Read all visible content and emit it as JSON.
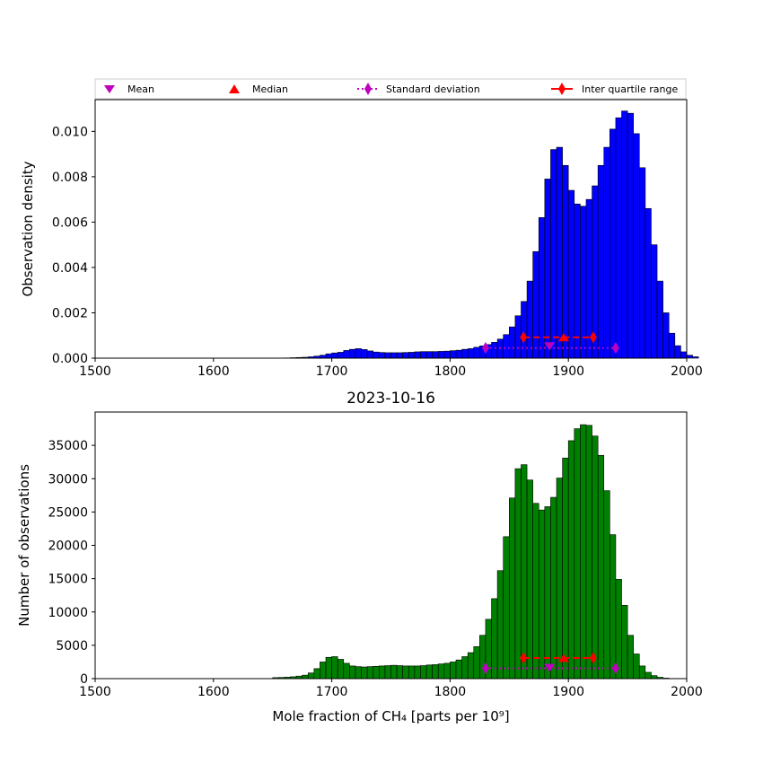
{
  "colors": {
    "density_bar": "#0000ff",
    "count_bar": "#008000",
    "edge": "#000000",
    "mean": "#bf00bf",
    "median": "#ff0000",
    "std": "#bf00bf",
    "iqr": "#ff0000"
  },
  "legend": {
    "mean": "Mean",
    "median": "Median",
    "std": "Standard deviation",
    "iqr": "Inter quartile range",
    "placement": "top, above first panel, full width"
  },
  "chart_data": [
    {
      "type": "bar",
      "title": "",
      "xlabel": "",
      "ylabel": "Observation density",
      "xlim": [
        1500,
        2000
      ],
      "ylim": [
        0,
        0.0114
      ],
      "xticks": [
        1500,
        1600,
        1700,
        1800,
        1900,
        2000
      ],
      "xtick_labels": [
        "1500",
        "1600",
        "1700",
        "1800",
        "1900",
        "2000"
      ],
      "yticks": [
        0,
        0.002,
        0.004,
        0.006,
        0.008,
        0.01
      ],
      "ytick_labels": [
        "0.000",
        "0.002",
        "0.004",
        "0.006",
        "0.008",
        "0.010"
      ],
      "bin_start": 1650,
      "bin_width": 5,
      "values": [
        0,
        0,
        1e-05,
        2e-05,
        3e-05,
        4e-05,
        6e-05,
        9e-05,
        0.00013,
        0.00019,
        0.00023,
        0.00026,
        0.00034,
        0.00039,
        0.00042,
        0.00038,
        0.00032,
        0.00027,
        0.00025,
        0.00024,
        0.00024,
        0.00024,
        0.00025,
        0.00026,
        0.00028,
        0.00029,
        0.00029,
        0.00029,
        0.0003,
        0.00031,
        0.00033,
        0.00035,
        0.00039,
        0.00042,
        0.00048,
        0.00054,
        0.0006,
        0.0007,
        0.00084,
        0.00104,
        0.00138,
        0.00187,
        0.0025,
        0.0034,
        0.0047,
        0.0062,
        0.0079,
        0.0092,
        0.0093,
        0.0085,
        0.0074,
        0.0068,
        0.0067,
        0.007,
        0.0076,
        0.0085,
        0.0093,
        0.0101,
        0.0106,
        0.0109,
        0.0108,
        0.0099,
        0.0084,
        0.0066,
        0.005,
        0.0034,
        0.002,
        0.0011,
        0.00055,
        0.00028,
        0.00013,
        6e-05
      ],
      "stats": {
        "mean": 1884,
        "median": 1896,
        "std_range": [
          1830,
          1940
        ],
        "iqr_range": [
          1862,
          1921
        ],
        "std_y": 0.00045,
        "mean_y": 0.00052,
        "median_y": 0.00092,
        "iqr_y": 0.00092
      }
    },
    {
      "type": "bar",
      "title": "2023-10-16",
      "xlabel": "Mole fraction of CH₄ [parts per 10⁹]",
      "ylabel": "Number of observations",
      "xlim": [
        1500,
        2000
      ],
      "ylim": [
        0,
        40000
      ],
      "xticks": [
        1500,
        1600,
        1700,
        1800,
        1900,
        2000
      ],
      "xtick_labels": [
        "1500",
        "1600",
        "1700",
        "1800",
        "1900",
        "2000"
      ],
      "yticks": [
        0,
        5000,
        10000,
        15000,
        20000,
        25000,
        30000,
        35000
      ],
      "ytick_labels": [
        "0",
        "5000",
        "10000",
        "15000",
        "20000",
        "25000",
        "30000",
        "35000"
      ],
      "bin_start": 1650,
      "bin_width": 5,
      "values": [
        150,
        180,
        220,
        280,
        380,
        520,
        850,
        1500,
        2500,
        3200,
        3300,
        2900,
        2300,
        1900,
        1800,
        1750,
        1800,
        1850,
        1900,
        1950,
        2000,
        1950,
        1900,
        1900,
        1900,
        1950,
        2050,
        2100,
        2200,
        2300,
        2500,
        2800,
        3300,
        3900,
        4800,
        6500,
        8900,
        12000,
        16200,
        21300,
        27100,
        31500,
        32100,
        29800,
        26300,
        25300,
        25800,
        27200,
        30100,
        33100,
        35700,
        37500,
        38100,
        38000,
        36400,
        33500,
        28200,
        21600,
        14900,
        11000,
        6500,
        3700,
        1900,
        950,
        450,
        200,
        80,
        30,
        10,
        0,
        0,
        0
      ],
      "stats": {
        "mean": 1884,
        "median": 1896,
        "std_range": [
          1830,
          1940
        ],
        "iqr_range": [
          1862,
          1921
        ],
        "std_y": 1550,
        "mean_y": 1600,
        "median_y": 3100,
        "iqr_y": 3100
      }
    }
  ]
}
